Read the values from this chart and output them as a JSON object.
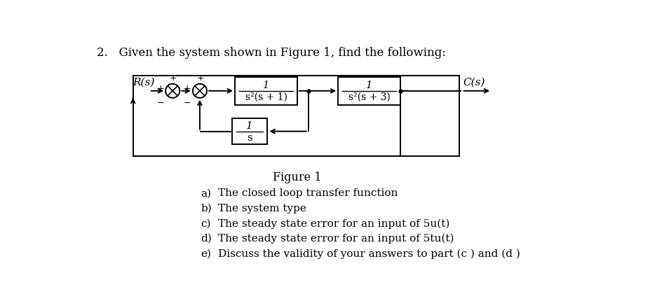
{
  "title": "2.   Given the system shown in Figure 1, find the following:",
  "figure_label": "Figure 1",
  "background_color": "#ffffff",
  "items": [
    {
      "label": "a)",
      "text": "The closed loop transfer function"
    },
    {
      "label": "b)",
      "text": "The system type"
    },
    {
      "label": "c)",
      "text": "The steady state error for an input of 5u(t)"
    },
    {
      "label": "d)",
      "text": "The steady state error for an input of 5tu(t)"
    },
    {
      "label": "e)",
      "text": "Discuss the validity of your answers to part (c ) and (d )"
    }
  ],
  "R_label": "R(s)",
  "C_label": "C(s)",
  "block1_num": "1",
  "block1_den": "s²(s + 1)",
  "block2_num": "1",
  "block2_den": "s²(s + 3)",
  "block3_num": "1",
  "block3_den": "s"
}
